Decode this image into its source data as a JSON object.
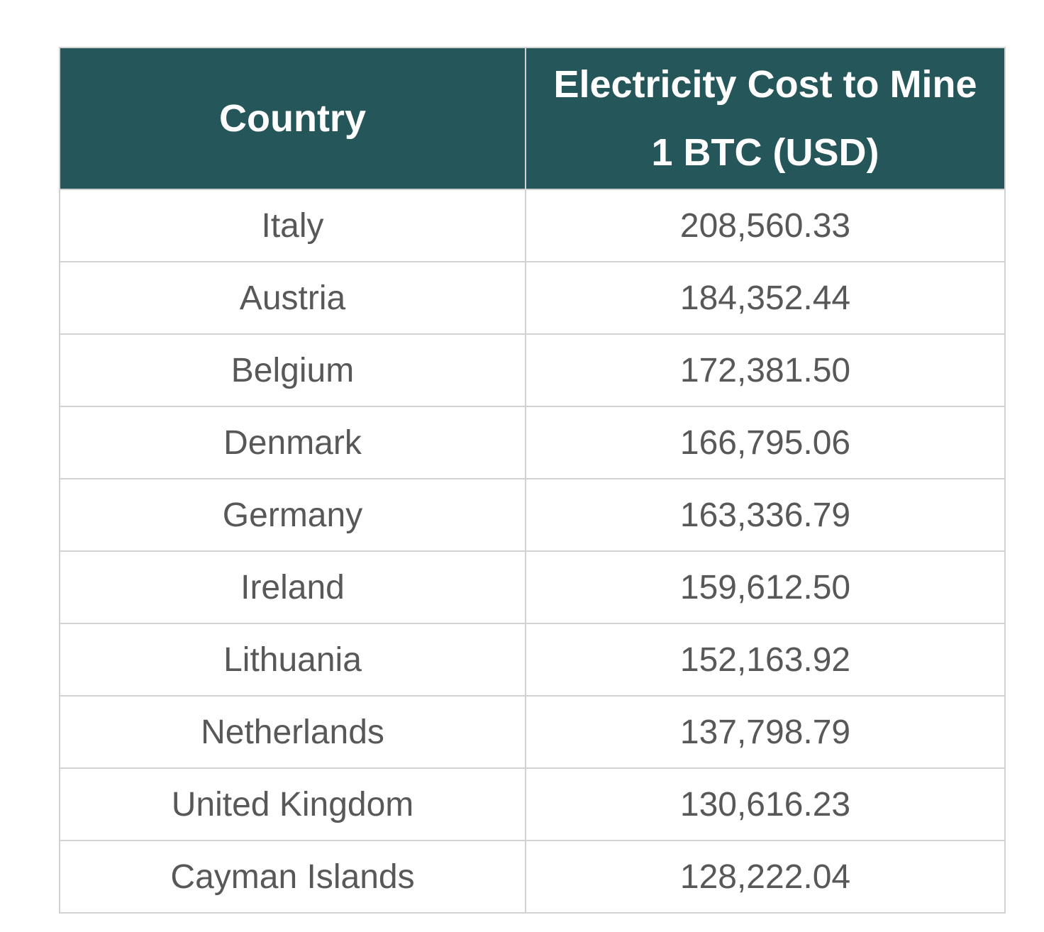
{
  "table": {
    "columns": [
      {
        "label": "Country"
      },
      {
        "label": "Electricity Cost to Mine 1 BTC (USD)"
      }
    ],
    "rows": [
      {
        "country": "Italy",
        "cost": "208,560.33"
      },
      {
        "country": "Austria",
        "cost": "184,352.44"
      },
      {
        "country": "Belgium",
        "cost": "172,381.50"
      },
      {
        "country": "Denmark",
        "cost": "166,795.06"
      },
      {
        "country": "Germany",
        "cost": "163,336.79"
      },
      {
        "country": "Ireland",
        "cost": "159,612.50"
      },
      {
        "country": "Lithuania",
        "cost": "152,163.92"
      },
      {
        "country": "Netherlands",
        "cost": "137,798.79"
      },
      {
        "country": "United Kingdom",
        "cost": "130,616.23"
      },
      {
        "country": "Cayman Islands",
        "cost": "128,222.04"
      }
    ],
    "colors": {
      "header_bg": "#25565A",
      "header_text": "#FFFFFF",
      "row_text": "#58585A",
      "row_bg": "#FFFFFF",
      "border": "#D2D2D2"
    }
  },
  "chart_data": {
    "type": "table",
    "title": "Electricity Cost to Mine 1 BTC (USD)",
    "columns": [
      "Country",
      "Electricity Cost to Mine 1 BTC (USD)"
    ],
    "categories": [
      "Italy",
      "Austria",
      "Belgium",
      "Denmark",
      "Germany",
      "Ireland",
      "Lithuania",
      "Netherlands",
      "United Kingdom",
      "Cayman Islands"
    ],
    "values": [
      208560.33,
      184352.44,
      172381.5,
      166795.06,
      163336.79,
      159612.5,
      152163.92,
      137798.79,
      130616.23,
      128222.04
    ],
    "layout_hints": {
      "header_background": "#25565A",
      "header_text_color": "#FFFFFF",
      "grid": "on",
      "alignment": "center"
    }
  }
}
